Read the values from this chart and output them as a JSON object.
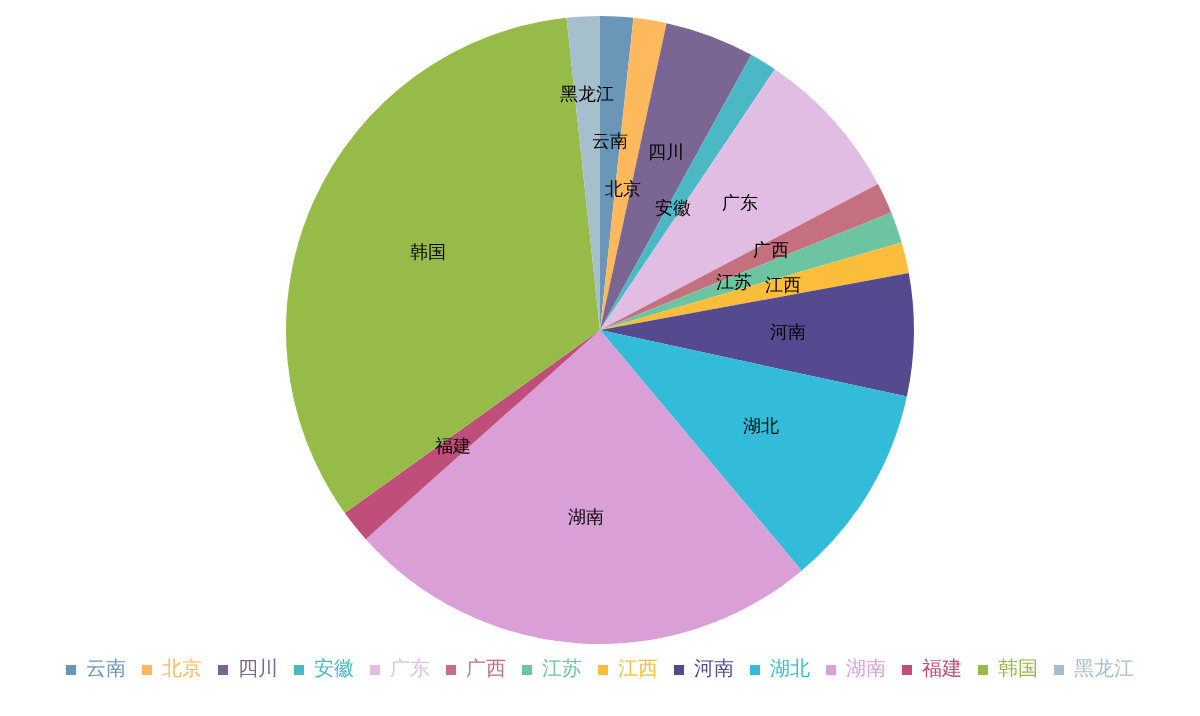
{
  "chart_data": {
    "type": "pie",
    "categories": [
      "云南",
      "北京",
      "四川",
      "安徽",
      "广东",
      "广西",
      "江苏",
      "江西",
      "河南",
      "湖北",
      "湖南",
      "福建",
      "韩国",
      "黑龙江"
    ],
    "values": [
      1.7,
      1.7,
      4.6,
      1.4,
      7.9,
      1.6,
      1.6,
      1.6,
      6.3,
      10.5,
      24.5,
      1.7,
      33.2,
      1.7
    ],
    "colors": [
      "#6a96b8",
      "#fdb95c",
      "#7b6592",
      "#4bb8c6",
      "#e2bde3",
      "#c4707e",
      "#6cc4a0",
      "#fbbd3a",
      "#554a8f",
      "#33bcd9",
      "#d99fd6",
      "#c04e7a",
      "#97bb48",
      "#a6bfcc"
    ],
    "legend": "bottom"
  }
}
